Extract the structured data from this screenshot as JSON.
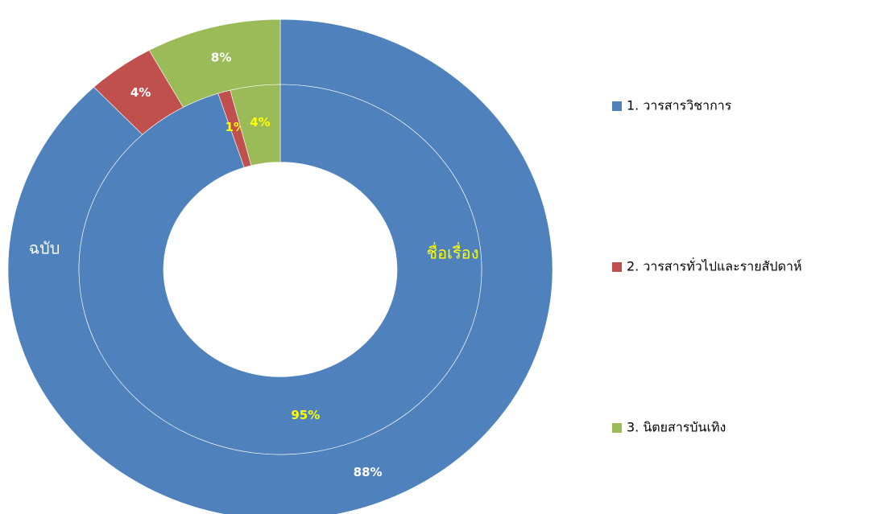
{
  "chart_data": {
    "type": "donut",
    "categories": [
      "1. วารสารวิชาการ",
      "2. วารสารทั่วไปและรายสัปดาห์",
      "3. นิตยสารบันเทิง"
    ],
    "colors": [
      "#4f81bd",
      "#c0504d",
      "#9bbb59"
    ],
    "rings": [
      {
        "name": "ฉบับ",
        "values": [
          88,
          4,
          8
        ],
        "value_labels": [
          "88%",
          "4%",
          "8%"
        ],
        "label_color": "#ffffff"
      },
      {
        "name": "ชื่อเรื่อง",
        "values": [
          95,
          1,
          4
        ],
        "value_labels": [
          "95%",
          "1%",
          "4%"
        ],
        "label_color": "#ffff00"
      }
    ]
  }
}
